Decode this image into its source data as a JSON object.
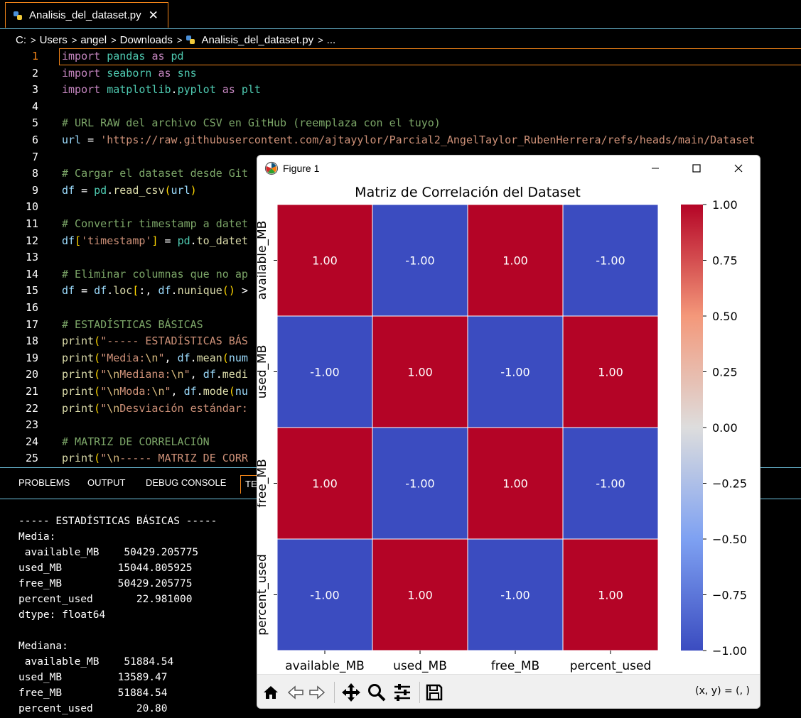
{
  "editor": {
    "tab": {
      "filename": "Analisis_del_dataset.py",
      "close_glyph": "✕",
      "icon": "python-file-icon"
    },
    "breadcrumb": [
      "C:",
      "Users",
      "angel",
      "Downloads",
      "Analisis_del_dataset.py",
      "..."
    ],
    "active_line": 1,
    "line_numbers": [
      "1",
      "2",
      "3",
      "4",
      "5",
      "6",
      "7",
      "8",
      "9",
      "10",
      "11",
      "12",
      "13",
      "14",
      "15",
      "16",
      "17",
      "18",
      "19",
      "20",
      "21",
      "22",
      "23",
      "24",
      "25"
    ],
    "code_lines": [
      "import pandas as pd",
      "import seaborn as sns",
      "import matplotlib.pyplot as plt",
      "",
      "# URL RAW del archivo CSV en GitHub (reemplaza con el tuyo)",
      "url = 'https://raw.githubusercontent.com/ajtayylor/Parcial2_AngelTaylor_RubenHerrera/refs/heads/main/Dataset",
      "",
      "# Cargar el dataset desde Git",
      "df = pd.read_csv(url)",
      "",
      "# Convertir timestamp a datet",
      "df['timestamp'] = pd.to_datet",
      "",
      "# Eliminar columnas que no ap",
      "df = df.loc[:, df.nunique() >",
      "",
      "# ESTADÍSTICAS BÁSICAS",
      "print(\"----- ESTADÍSTICAS BÁS",
      "print(\"Media:\\n\", df.mean(num",
      "print(\"\\nMediana:\\n\", df.medi",
      "print(\"\\nModa:\\n\", df.mode(nu",
      "print(\"\\nDesviación estándar:",
      "",
      "# MATRIZ DE CORRELACIÓN",
      "print(\"\\n----- MATRIZ DE CORR"
    ]
  },
  "panel": {
    "tabs": [
      "PROBLEMS",
      "OUTPUT",
      "DEBUG CONSOLE",
      "TER"
    ],
    "terminal_lines": [
      "----- ESTADÍSTICAS BÁSICAS -----",
      "Media:",
      " available_MB    50429.205775",
      "used_MB         15044.805925",
      "free_MB         50429.205775",
      "percent_used       22.981000",
      "dtype: float64",
      "",
      "Mediana:",
      " available_MB    51884.54",
      "used_MB         13589.47",
      "free_MB         51884.54",
      "percent_used       20.80"
    ]
  },
  "figure_window": {
    "title": "Figure 1",
    "controls": {
      "minimize": "minimize-icon",
      "maximize": "maximize-icon",
      "close": "close-icon"
    },
    "toolbar": {
      "buttons": [
        "home-icon",
        "back-arrow-icon",
        "forward-arrow-icon",
        "pan-move-icon",
        "zoom-magnifier-icon",
        "configure-subplots-icon",
        "save-floppy-icon"
      ],
      "coordinate_readout": "(x, y) = (, )"
    }
  },
  "chart_data": {
    "type": "heatmap",
    "title": "Matriz de Correlación del Dataset",
    "xlabel": "",
    "ylabel": "",
    "x_categories": [
      "available_MB",
      "used_MB",
      "free_MB",
      "percent_used"
    ],
    "y_categories": [
      "available_MB",
      "used_MB",
      "free_MB",
      "percent_used"
    ],
    "values": [
      [
        1.0,
        -1.0,
        1.0,
        -1.0
      ],
      [
        -1.0,
        1.0,
        -1.0,
        1.0
      ],
      [
        1.0,
        -1.0,
        1.0,
        -1.0
      ],
      [
        -1.0,
        1.0,
        -1.0,
        1.0
      ]
    ],
    "annotations": [
      [
        "1.00",
        "-1.00",
        "1.00",
        "-1.00"
      ],
      [
        "-1.00",
        "1.00",
        "-1.00",
        "1.00"
      ],
      [
        "1.00",
        "-1.00",
        "1.00",
        "-1.00"
      ],
      [
        "-1.00",
        "1.00",
        "-1.00",
        "1.00"
      ]
    ],
    "colormap": "coolwarm",
    "colors": {
      "positive": "#b40426",
      "negative": "#3b4cc0",
      "center": "#dddddd"
    },
    "colorbar": {
      "vmin": -1.0,
      "vmax": 1.0,
      "ticks": [
        1.0,
        0.75,
        0.5,
        0.25,
        0.0,
        -0.25,
        -0.5,
        -0.75,
        -1.0
      ],
      "tick_labels": [
        "1.00",
        "0.75",
        "0.50",
        "0.25",
        "0.00",
        "−0.25",
        "−0.50",
        "−0.75",
        "−1.00"
      ]
    },
    "grid": false
  }
}
